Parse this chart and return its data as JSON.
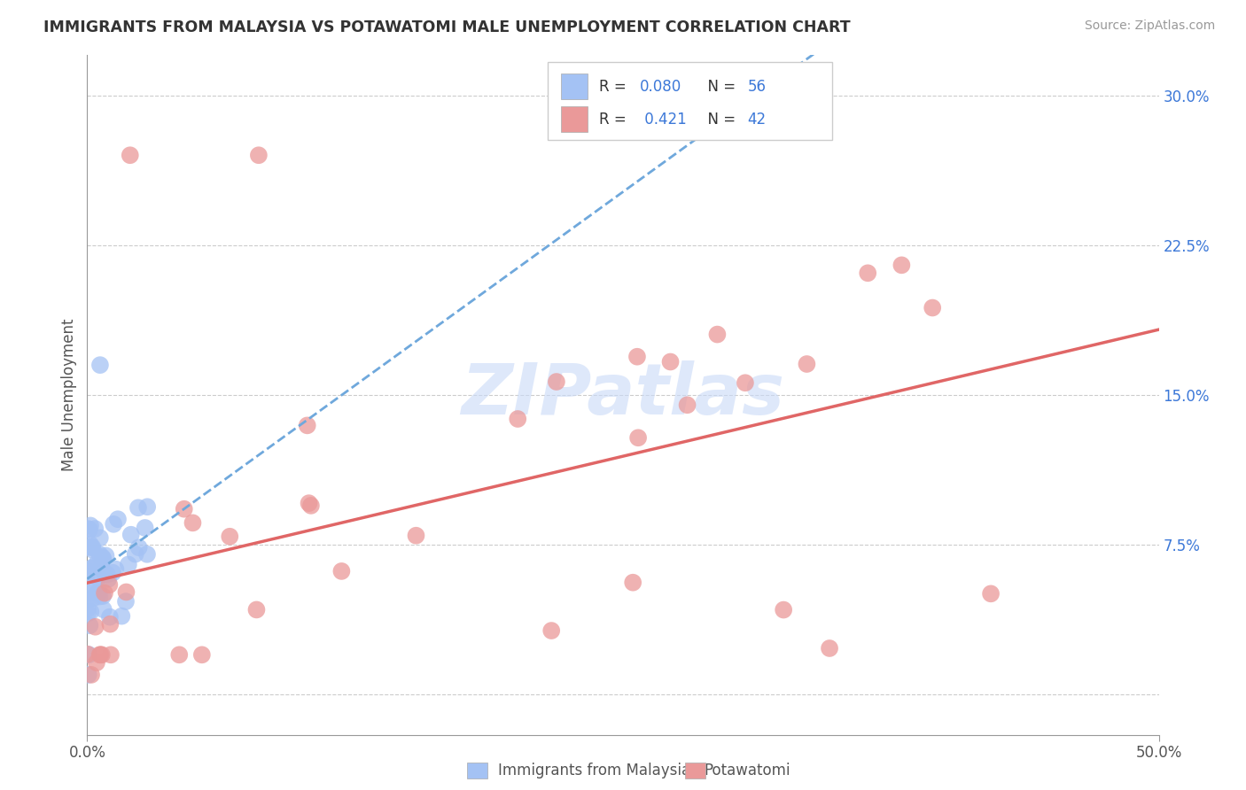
{
  "title": "IMMIGRANTS FROM MALAYSIA VS POTAWATOMI MALE UNEMPLOYMENT CORRELATION CHART",
  "source": "Source: ZipAtlas.com",
  "ylabel": "Male Unemployment",
  "y_ticks": [
    0.0,
    0.075,
    0.15,
    0.225,
    0.3
  ],
  "y_tick_labels": [
    "",
    "7.5%",
    "15.0%",
    "22.5%",
    "30.0%"
  ],
  "x_lim": [
    0.0,
    0.5
  ],
  "y_lim": [
    -0.02,
    0.32
  ],
  "color_blue": "#a4c2f4",
  "color_pink": "#ea9999",
  "line_blue": "#6fa8dc",
  "line_pink": "#e06666",
  "watermark": "ZIPatlas",
  "legend_label1": "Immigrants from Malaysia",
  "legend_label2": "Potawatomi",
  "r1": "0.080",
  "n1": "56",
  "r2": "0.421",
  "n2": "42"
}
